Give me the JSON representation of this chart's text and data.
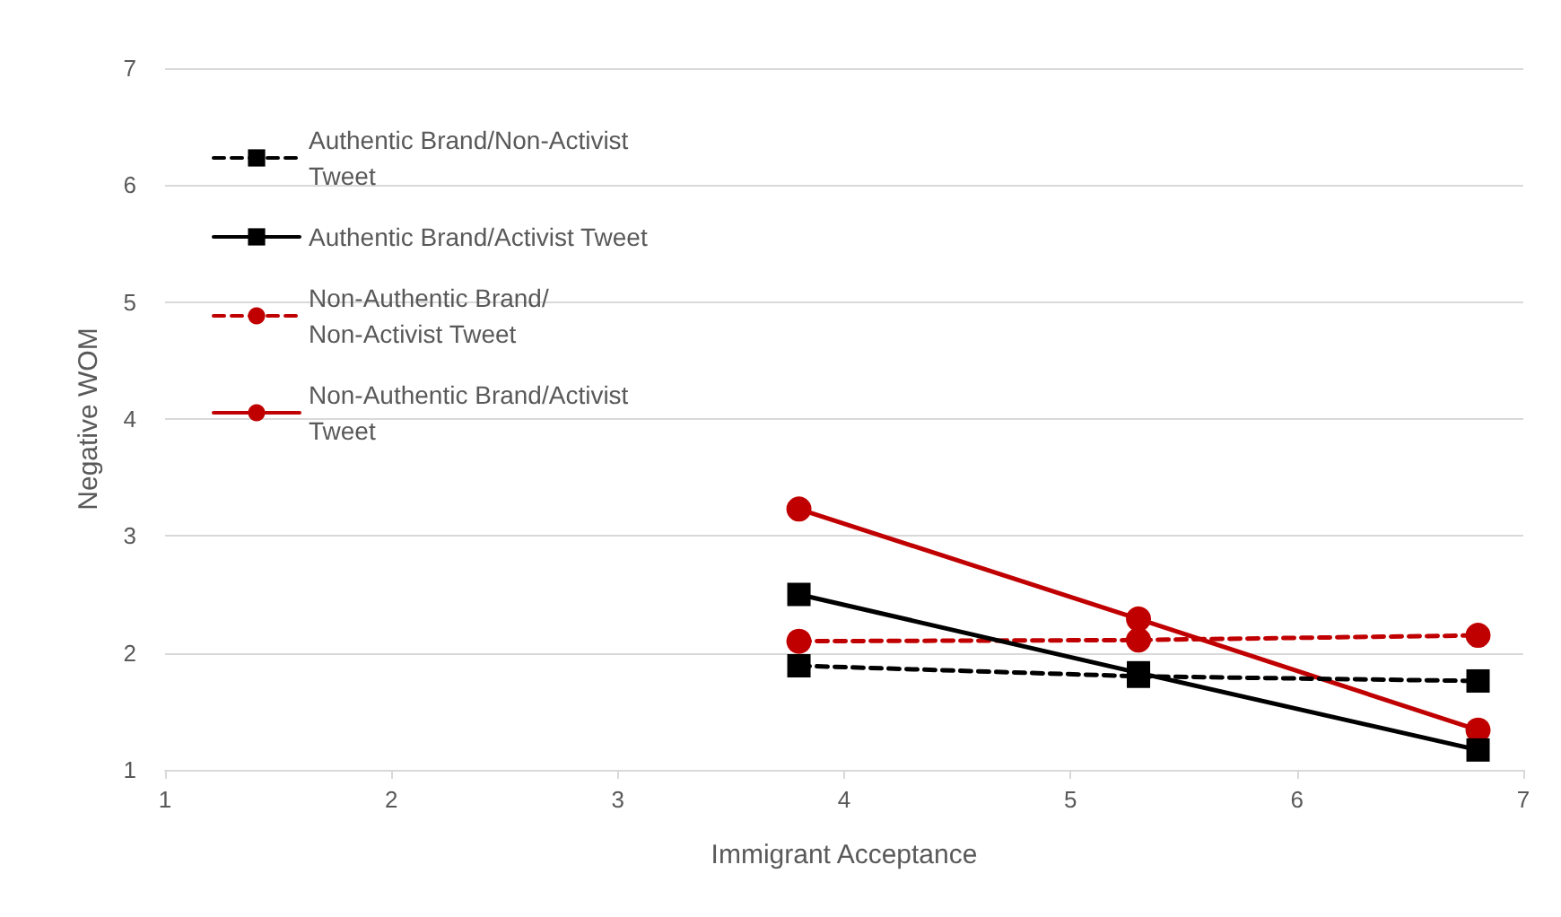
{
  "chart_data": {
    "type": "line",
    "xlabel": "Immigrant Acceptance",
    "ylabel": "Negative WOM",
    "x": [
      3.8,
      5.3,
      6.8
    ],
    "xlim": [
      1,
      7
    ],
    "xticks": [
      1,
      2,
      3,
      4,
      5,
      6,
      7
    ],
    "ylim": [
      1,
      7
    ],
    "yticks": [
      1,
      2,
      3,
      4,
      5,
      6,
      7
    ],
    "grid": "y",
    "legend": "top left",
    "series": [
      {
        "name": "Authentic Brand/Non-Activist Tweet",
        "color": "#000000",
        "marker": "square",
        "line_style": "dashed",
        "values": [
          1.89,
          1.8,
          1.76
        ]
      },
      {
        "name": "Authentic Brand/Activist Tweet",
        "color": "#000000",
        "marker": "square",
        "line_style": "solid",
        "values": [
          2.5,
          1.83,
          1.17
        ]
      },
      {
        "name": "Non-Authentic Brand/Non-Activist Tweet",
        "color": "#c00000",
        "marker": "circle",
        "line_style": "dashed",
        "values": [
          2.1,
          2.11,
          2.15
        ]
      },
      {
        "name": "Non-Authentic Brand/Activist Tweet",
        "color": "#c00000",
        "marker": "circle",
        "line_style": "solid",
        "values": [
          3.23,
          2.29,
          1.34
        ]
      }
    ]
  }
}
